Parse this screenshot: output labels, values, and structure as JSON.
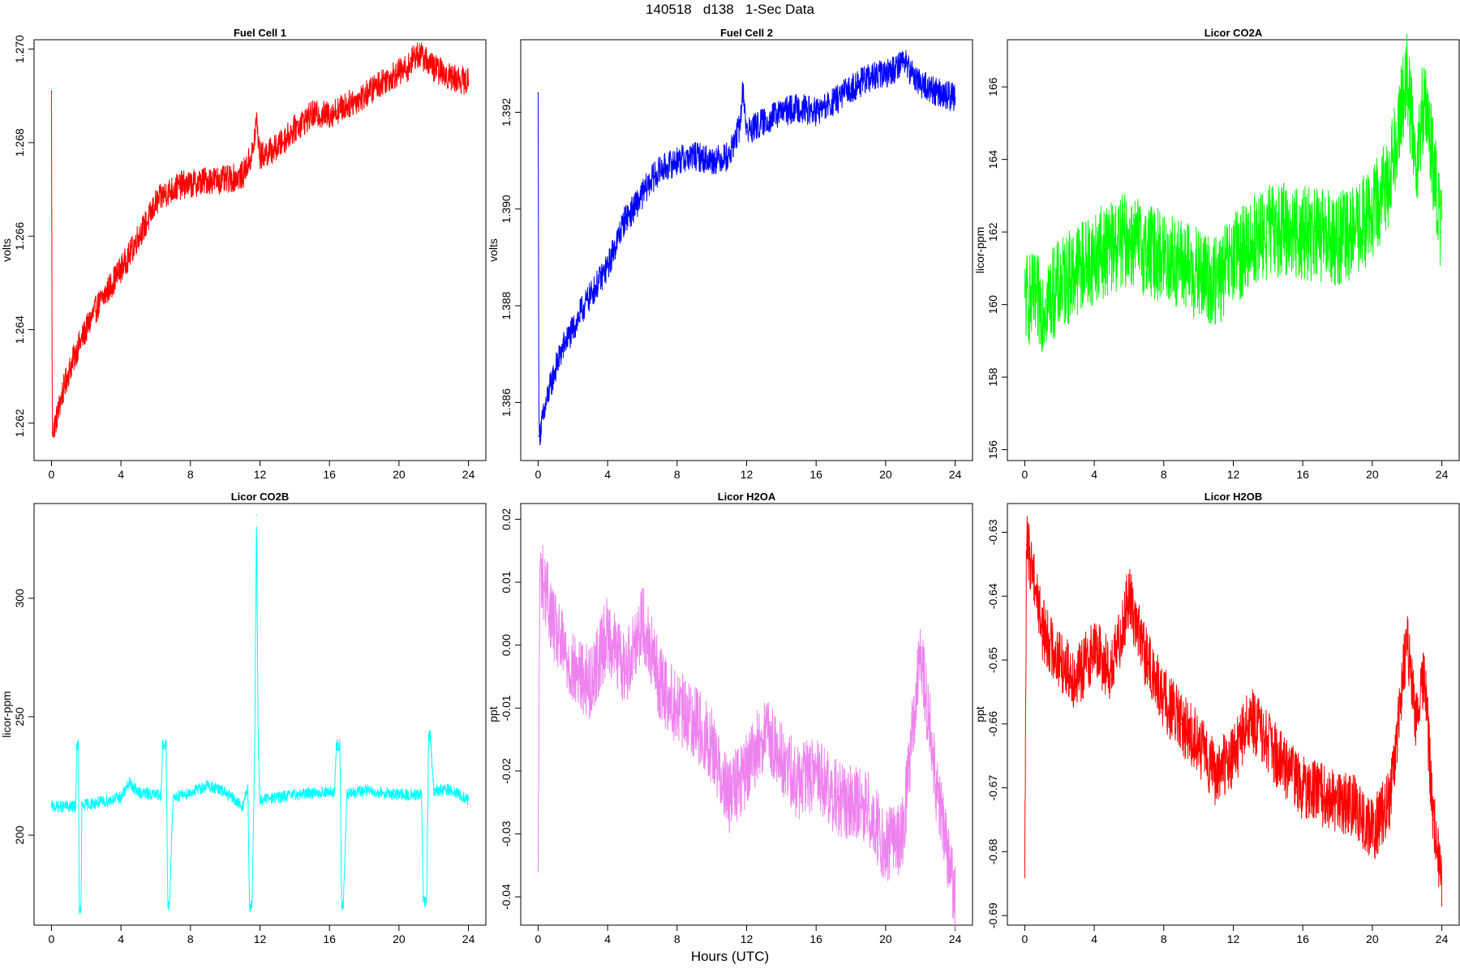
{
  "figure": {
    "title": "140518   d138   1-Sec Data",
    "x_caption": "Hours (UTC)"
  },
  "chart_data": [
    {
      "type": "line",
      "title": "Fuel Cell 1",
      "xlabel": "",
      "ylabel": "volts",
      "color": "#ff0000",
      "xlim": [
        -1,
        25
      ],
      "ylim": [
        1.2612,
        1.2702
      ],
      "xticks": [
        0,
        4,
        8,
        12,
        16,
        20,
        24
      ],
      "xtick_labels": [
        "0",
        "4",
        "8",
        "12",
        "16",
        "20",
        "24"
      ],
      "yticks": [
        1.262,
        1.264,
        1.266,
        1.268,
        1.27
      ],
      "ytick_labels": [
        "1.262",
        "1.264",
        "1.266",
        "1.268",
        "1.270"
      ],
      "grid": false,
      "series": [
        {
          "x": [
            0,
            0.05,
            0.3,
            0.6,
            1,
            1.5,
            2,
            2.5,
            3,
            3.5,
            4,
            4.5,
            5,
            5.5,
            6,
            6.5,
            7,
            7.5,
            8,
            9,
            10,
            11,
            11.6,
            11.8,
            12,
            13,
            14,
            15,
            16,
            17,
            18,
            19,
            20,
            20.5,
            21,
            21.5,
            22,
            23,
            24
          ],
          "y": [
            1.2691,
            1.2618,
            1.2621,
            1.2626,
            1.2631,
            1.2636,
            1.264,
            1.2644,
            1.2647,
            1.265,
            1.2653,
            1.2656,
            1.266,
            1.2663,
            1.2667,
            1.2669,
            1.267,
            1.2671,
            1.2671,
            1.2672,
            1.2672,
            1.2673,
            1.2678,
            1.2685,
            1.2677,
            1.2679,
            1.2683,
            1.2686,
            1.2686,
            1.2688,
            1.269,
            1.2693,
            1.2695,
            1.2696,
            1.2699,
            1.2698,
            1.2696,
            1.2694,
            1.2693
          ],
          "noise": 0.0003
        }
      ]
    },
    {
      "type": "line",
      "title": "Fuel Cell 2",
      "xlabel": "",
      "ylabel": "volts",
      "color": "#0000ff",
      "xlim": [
        -1,
        25
      ],
      "ylim": [
        1.3848,
        1.3935
      ],
      "xticks": [
        0,
        4,
        8,
        12,
        16,
        20,
        24
      ],
      "xtick_labels": [
        "0",
        "4",
        "8",
        "12",
        "16",
        "20",
        "24"
      ],
      "yticks": [
        1.386,
        1.388,
        1.39,
        1.392
      ],
      "ytick_labels": [
        "1.386",
        "1.388",
        "1.390",
        "1.392"
      ],
      "grid": false,
      "series": [
        {
          "x": [
            0,
            0.05,
            0.3,
            0.6,
            1,
            1.5,
            2,
            2.5,
            3,
            3.5,
            4,
            4.5,
            5,
            5.5,
            6,
            6.5,
            7,
            7.5,
            8,
            9,
            10,
            11,
            11.6,
            11.8,
            12,
            13,
            14,
            15,
            16,
            17,
            18,
            19,
            20,
            20.5,
            21,
            21.5,
            22,
            23,
            24
          ],
          "y": [
            1.3924,
            1.3853,
            1.3857,
            1.3862,
            1.3867,
            1.3872,
            1.3875,
            1.3879,
            1.3882,
            1.3885,
            1.3888,
            1.3893,
            1.3898,
            1.39,
            1.3903,
            1.3906,
            1.3908,
            1.3909,
            1.391,
            1.3911,
            1.391,
            1.3911,
            1.3917,
            1.3925,
            1.3916,
            1.3918,
            1.392,
            1.3921,
            1.392,
            1.3922,
            1.3925,
            1.3927,
            1.3928,
            1.3929,
            1.3931,
            1.3928,
            1.3926,
            1.3924,
            1.3923
          ],
          "noise": 0.0003
        }
      ]
    },
    {
      "type": "line",
      "title": "Licor CO2A",
      "xlabel": "",
      "ylabel": "licor-ppm",
      "color": "#00ff00",
      "xlim": [
        -1,
        25
      ],
      "ylim": [
        155.7,
        167.3
      ],
      "xticks": [
        0,
        4,
        8,
        12,
        16,
        20,
        24
      ],
      "xtick_labels": [
        "0",
        "4",
        "8",
        "12",
        "16",
        "20",
        "24"
      ],
      "yticks": [
        156,
        158,
        160,
        162,
        164,
        166
      ],
      "ytick_labels": [
        "156",
        "158",
        "160",
        "162",
        "164",
        "166"
      ],
      "grid": false,
      "series": [
        {
          "x": [
            0,
            1,
            2,
            3,
            4,
            5,
            6,
            7,
            8,
            9,
            10,
            11,
            12,
            13,
            14,
            15,
            16,
            17,
            18,
            19,
            20,
            21,
            21.5,
            22,
            22.5,
            23,
            23.5,
            24
          ],
          "y": [
            160.2,
            160.0,
            160.5,
            161.0,
            161.3,
            161.6,
            161.8,
            161.5,
            161.3,
            161.1,
            160.8,
            160.6,
            161.2,
            161.7,
            162.0,
            162.1,
            162.0,
            161.9,
            161.8,
            162.0,
            162.5,
            163.5,
            165.0,
            166.3,
            163.8,
            165.8,
            163.8,
            162.0
          ],
          "noise": 1.3
        }
      ]
    },
    {
      "type": "line",
      "title": "Licor CO2B",
      "xlabel": "",
      "ylabel": "licor-ppm",
      "color": "#00ffff",
      "xlim": [
        -1,
        25
      ],
      "ylim": [
        162,
        340
      ],
      "xticks": [
        0,
        4,
        8,
        12,
        16,
        20,
        24
      ],
      "xtick_labels": [
        "0",
        "4",
        "8",
        "12",
        "16",
        "20",
        "24"
      ],
      "yticks": [
        200,
        250,
        300
      ],
      "ytick_labels": [
        "200",
        "250",
        "300"
      ],
      "grid": false,
      "series": [
        {
          "x": [
            0,
            1.3,
            1.4,
            1.45,
            1.55,
            1.6,
            1.7,
            1.75,
            2,
            3,
            4,
            4.5,
            5,
            6,
            6.3,
            6.4,
            6.6,
            6.7,
            6.8,
            7,
            8,
            9,
            10,
            11,
            11.3,
            11.4,
            11.55,
            11.7,
            11.8,
            11.9,
            12.0,
            12.1,
            13,
            14,
            15,
            16,
            16.3,
            16.4,
            16.6,
            16.7,
            16.8,
            17,
            18,
            19,
            20,
            21,
            21.3,
            21.4,
            21.6,
            21.7,
            21.8,
            22,
            23,
            24
          ],
          "y": [
            212,
            212,
            212,
            238,
            238,
            168,
            168,
            212,
            213,
            214,
            216,
            222,
            218,
            217,
            217,
            238,
            238,
            170,
            170,
            216,
            218,
            221,
            218,
            212,
            220,
            170,
            170,
            238,
            335,
            238,
            215,
            215,
            216,
            217,
            218,
            218,
            218,
            238,
            238,
            170,
            170,
            217,
            219,
            218,
            217,
            217,
            217,
            172,
            172,
            242,
            242,
            219,
            219,
            215
          ],
          "noise": 2.5
        }
      ]
    },
    {
      "type": "line",
      "title": "Licor H2OA",
      "xlabel": "",
      "ylabel": "ppt",
      "color": "#ee82ee",
      "xlim": [
        -1,
        25
      ],
      "ylim": [
        -0.0445,
        0.0225
      ],
      "xticks": [
        0,
        4,
        8,
        12,
        16,
        20,
        24
      ],
      "xtick_labels": [
        "0",
        "4",
        "8",
        "12",
        "16",
        "20",
        "24"
      ],
      "yticks": [
        -0.04,
        -0.03,
        -0.02,
        -0.01,
        0.0,
        0.01,
        0.02
      ],
      "ytick_labels": [
        "-0.04",
        "-0.03",
        "-0.02",
        "-0.01",
        "0.00",
        "0.01",
        "0.02"
      ],
      "grid": false,
      "series": [
        {
          "x": [
            0,
            0.1,
            0.5,
            1,
            2,
            3,
            4,
            5,
            6,
            7,
            8,
            9,
            10,
            11,
            12,
            13,
            14,
            15,
            16,
            17,
            18,
            19,
            20,
            21,
            21.5,
            22,
            22.5,
            23,
            23.5,
            24
          ],
          "y": [
            -0.036,
            0.012,
            0.008,
            0.002,
            -0.004,
            -0.006,
            0.002,
            -0.004,
            0.004,
            -0.006,
            -0.01,
            -0.012,
            -0.016,
            -0.024,
            -0.02,
            -0.014,
            -0.018,
            -0.022,
            -0.02,
            -0.024,
            -0.025,
            -0.026,
            -0.032,
            -0.03,
            -0.015,
            -0.002,
            -0.012,
            -0.025,
            -0.032,
            -0.04
          ],
          "noise": 0.006
        }
      ]
    },
    {
      "type": "line",
      "title": "Licor H2OB",
      "xlabel": "",
      "ylabel": "ppt",
      "color": "#ff0000",
      "xlim": [
        -1,
        25
      ],
      "ylim": [
        -0.6915,
        -0.6255
      ],
      "xticks": [
        0,
        4,
        8,
        12,
        16,
        20,
        24
      ],
      "xtick_labels": [
        "0",
        "4",
        "8",
        "12",
        "16",
        "20",
        "24"
      ],
      "yticks": [
        -0.69,
        -0.68,
        -0.67,
        -0.66,
        -0.65,
        -0.64,
        -0.63
      ],
      "ytick_labels": [
        "-0.69",
        "-0.68",
        "-0.67",
        "-0.66",
        "-0.65",
        "-0.64",
        "-0.63"
      ],
      "grid": false,
      "series": [
        {
          "x": [
            0,
            0.1,
            0.5,
            1,
            2,
            3,
            4,
            5,
            6,
            7,
            8,
            9,
            10,
            11,
            12,
            13,
            14,
            15,
            16,
            17,
            18,
            19,
            20,
            21,
            21.5,
            22,
            22.5,
            23,
            23.5,
            24
          ],
          "y": [
            -0.684,
            -0.632,
            -0.636,
            -0.645,
            -0.65,
            -0.653,
            -0.648,
            -0.652,
            -0.64,
            -0.65,
            -0.656,
            -0.66,
            -0.663,
            -0.668,
            -0.665,
            -0.659,
            -0.663,
            -0.667,
            -0.67,
            -0.671,
            -0.672,
            -0.673,
            -0.677,
            -0.672,
            -0.66,
            -0.646,
            -0.66,
            -0.652,
            -0.675,
            -0.684
          ],
          "noise": 0.005
        }
      ]
    }
  ]
}
